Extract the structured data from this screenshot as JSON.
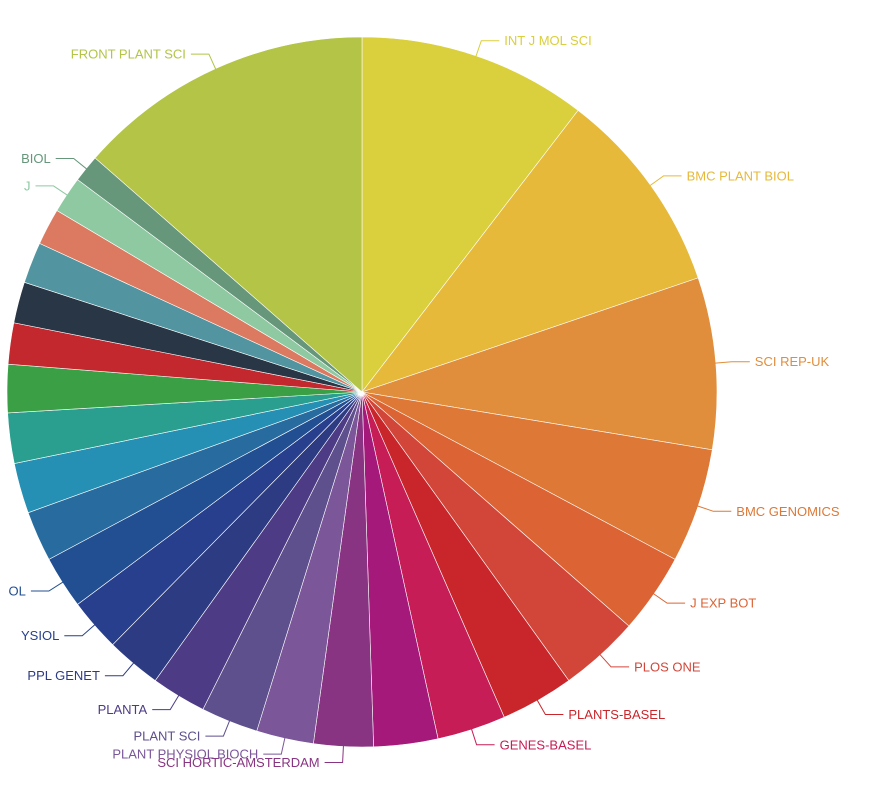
{
  "chart_data": {
    "type": "pie",
    "title": "",
    "legend": "none",
    "slices": [
      {
        "label": "INT J MOL SCI",
        "value": 10.0,
        "color": "#dacf3c"
      },
      {
        "label": "BMC PLANT BIOL",
        "value": 9.0,
        "color": "#e6b93a"
      },
      {
        "label": "SCI REP-UK",
        "value": 7.5,
        "color": "#e08e3c"
      },
      {
        "label": "BMC GENOMICS",
        "value": 5.0,
        "color": "#dd7836"
      },
      {
        "label": "J EXP BOT",
        "value": 3.5,
        "color": "#dc6434"
      },
      {
        "label": "PLOS ONE",
        "value": 3.5,
        "color": "#d2463a"
      },
      {
        "label": "PLANTS-BASEL",
        "value": 3.2,
        "color": "#c9262c"
      },
      {
        "label": "GENES-BASEL",
        "value": 3.0,
        "color": "#c61d56"
      },
      {
        "label": "",
        "value": 2.8,
        "color": "#a5197a"
      },
      {
        "label": "SCI HORTIC-AMSTERDAM",
        "value": 2.6,
        "color": "#893483"
      },
      {
        "label": "PLANT PHYSIOL BIOCH",
        "value": 2.5,
        "color": "#7b5699"
      },
      {
        "label": "PLANT SCI",
        "value": 2.5,
        "color": "#5e4f8d"
      },
      {
        "label": "PLANTA",
        "value": 2.4,
        "color": "#4e3b85"
      },
      {
        "label": "PPL GENET",
        "value": 2.4,
        "color": "#2d3b82"
      },
      {
        "label": "YSIOL",
        "value": 2.3,
        "color": "#273f8c"
      },
      {
        "label": "OL",
        "value": 2.3,
        "color": "#214f92"
      },
      {
        "label": "",
        "value": 2.2,
        "color": "#286c9f"
      },
      {
        "label": "",
        "value": 2.2,
        "color": "#2590b3"
      },
      {
        "label": "",
        "value": 2.2,
        "color": "#2a9f8f"
      },
      {
        "label": "",
        "value": 2.1,
        "color": "#3b9f45"
      },
      {
        "label": "",
        "value": 1.8,
        "color": "#c2282e"
      },
      {
        "label": "",
        "value": 1.8,
        "color": "#283645"
      },
      {
        "label": "",
        "value": 1.8,
        "color": "#5295a0"
      },
      {
        "label": "",
        "value": 1.6,
        "color": "#db7a60"
      },
      {
        "label": "J",
        "value": 1.6,
        "color": "#8ec9a1"
      },
      {
        "label": "BIOL",
        "value": 1.2,
        "color": "#66977b"
      },
      {
        "label": "FRONT PLANT SCI",
        "value": 13.0,
        "color": "#b3c446"
      }
    ]
  }
}
